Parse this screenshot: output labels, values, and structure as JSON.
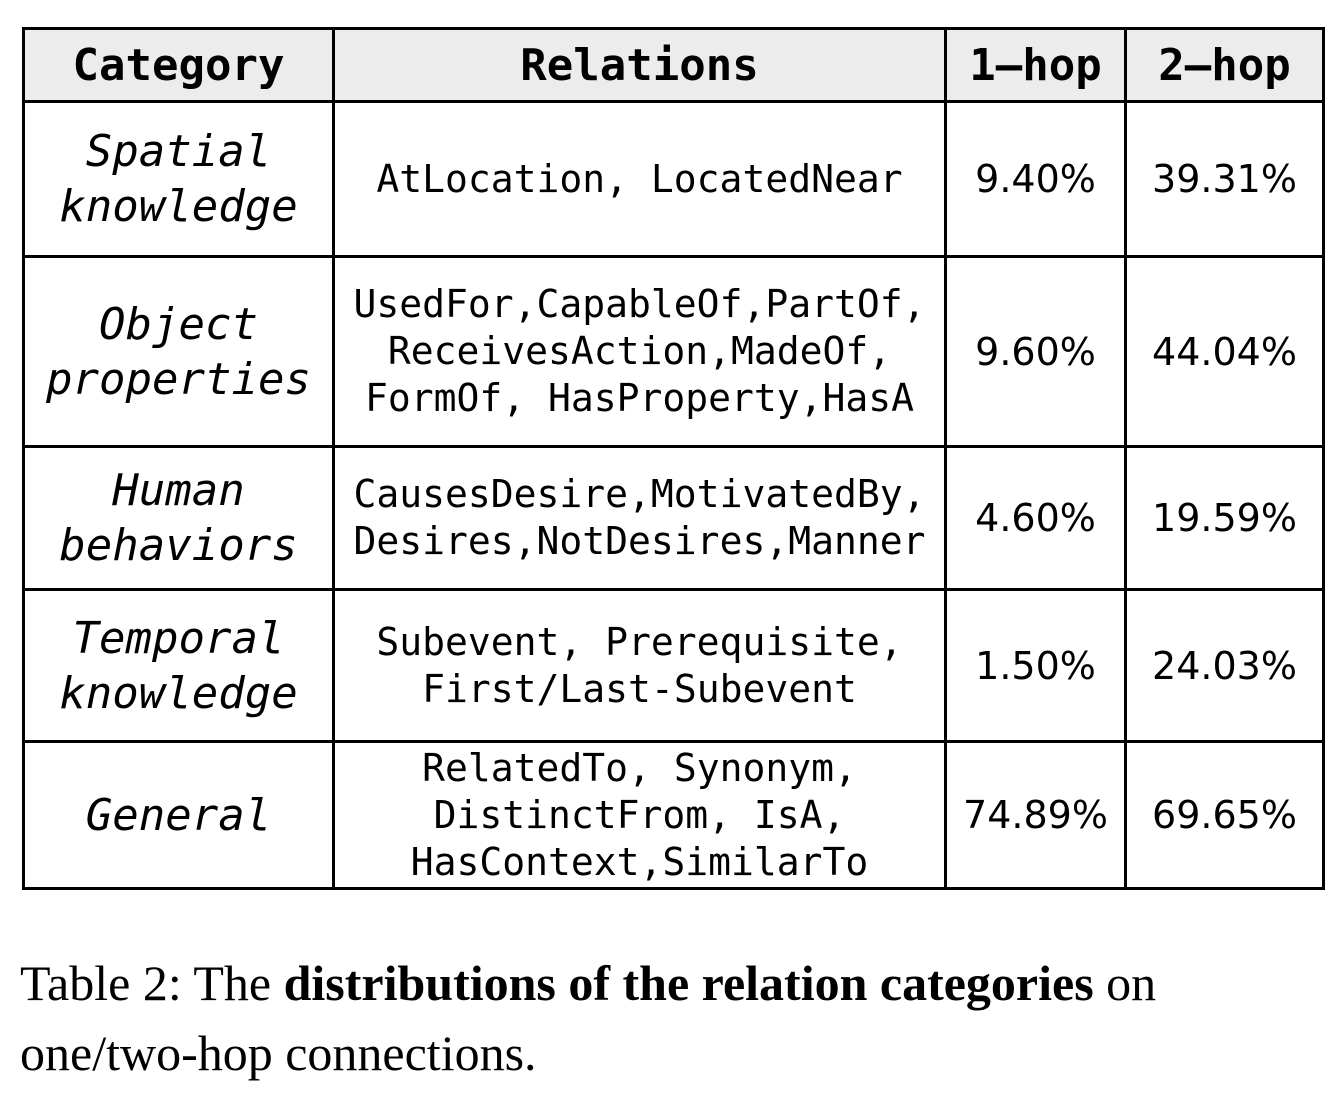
{
  "table": {
    "headers": {
      "category": "Category",
      "relations": "Relations",
      "one_hop": "1–hop",
      "two_hop": "2–hop"
    },
    "rows": [
      {
        "category_lines": [
          "Spatial",
          "knowledge"
        ],
        "relations": "AtLocation, LocatedNear",
        "one_hop": "9.40%",
        "two_hop": "39.31%"
      },
      {
        "category_lines": [
          "Object",
          "properties"
        ],
        "relations": "UsedFor,CapableOf,PartOf,\nReceivesAction,MadeOf,\nFormOf, HasProperty,HasA",
        "one_hop": "9.60%",
        "two_hop": "44.04%"
      },
      {
        "category_lines": [
          "Human",
          "behaviors"
        ],
        "relations": "CausesDesire,MotivatedBy,\nDesires,NotDesires,Manner",
        "one_hop": "4.60%",
        "two_hop": "19.59%"
      },
      {
        "category_lines": [
          "Temporal",
          "knowledge"
        ],
        "relations": "Subevent, Prerequisite,\nFirst/Last-Subevent",
        "one_hop": "1.50%",
        "two_hop": "24.03%"
      },
      {
        "category_lines": [
          "General"
        ],
        "relations": "RelatedTo, Synonym,\nDistinctFrom, IsA,\nHasContext,SimilarTo",
        "one_hop": "74.89%",
        "two_hop": "69.65%"
      }
    ]
  },
  "caption": {
    "prefix": "Table 2: The ",
    "bold": "distributions of the relation categories",
    "suffix": " on one/two-hop connections."
  }
}
